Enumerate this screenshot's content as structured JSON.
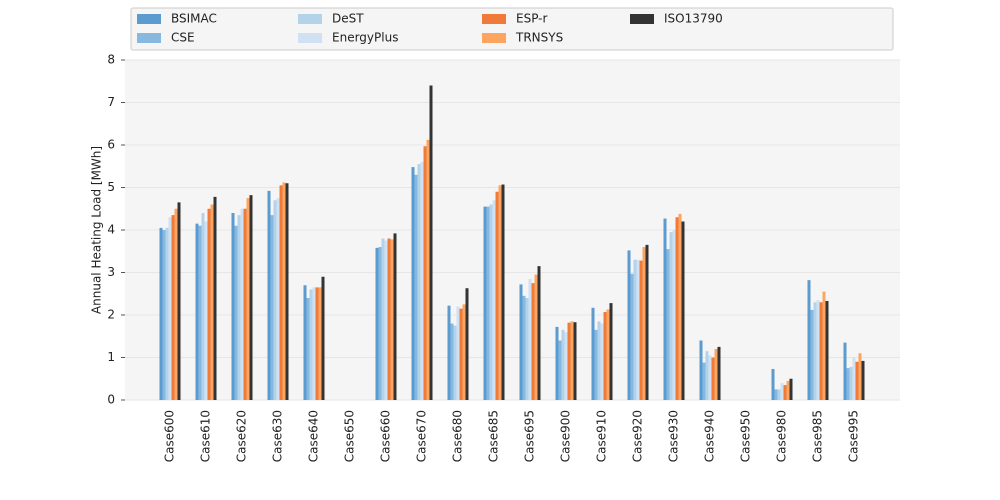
{
  "chart_data": {
    "type": "bar",
    "ylabel": "Annual Heating Load [MWh]",
    "categories": [
      "Case600",
      "Case610",
      "Case620",
      "Case630",
      "Case640",
      "Case650",
      "Case660",
      "Case670",
      "Case680",
      "Case685",
      "Case695",
      "Case900",
      "Case910",
      "Case920",
      "Case930",
      "Case940",
      "Case950",
      "Case980",
      "Case985",
      "Case995"
    ],
    "series": [
      {
        "name": "BSIMAC",
        "color": "#5b9bd0",
        "values": [
          4.05,
          4.15,
          4.4,
          4.92,
          2.7,
          0,
          3.58,
          5.48,
          2.22,
          4.55,
          2.72,
          1.72,
          2.17,
          3.52,
          4.27,
          1.4,
          0,
          0.73,
          2.82,
          1.35
        ]
      },
      {
        "name": "CSE",
        "color": "#86b8e0",
        "values": [
          4.0,
          4.1,
          4.1,
          4.35,
          2.4,
          0,
          3.6,
          5.3,
          1.8,
          4.55,
          2.45,
          1.4,
          1.65,
          2.97,
          3.55,
          0.88,
          0,
          0.25,
          2.12,
          0.75
        ]
      },
      {
        "name": "DeST",
        "color": "#b3d3ea",
        "values": [
          4.05,
          4.4,
          4.35,
          4.7,
          2.6,
          0,
          3.8,
          5.55,
          1.75,
          4.6,
          2.4,
          1.65,
          1.85,
          3.3,
          3.95,
          1.15,
          0,
          0.25,
          2.3,
          0.78
        ]
      },
      {
        "name": "EnergyPlus",
        "color": "#cfe1f2",
        "values": [
          4.3,
          4.2,
          4.5,
          4.75,
          2.65,
          0,
          3.75,
          5.6,
          2.2,
          4.7,
          2.85,
          1.6,
          1.8,
          3.3,
          4.0,
          1.05,
          0,
          0.4,
          2.35,
          1.0
        ]
      },
      {
        "name": "ESP-r",
        "color": "#ef7a3a",
        "values": [
          4.35,
          4.5,
          4.5,
          5.05,
          2.65,
          0,
          3.8,
          5.97,
          2.15,
          4.9,
          2.75,
          1.82,
          2.07,
          3.28,
          4.3,
          1.0,
          0,
          0.35,
          2.3,
          0.9
        ]
      },
      {
        "name": "TRNSYS",
        "color": "#fda560",
        "values": [
          4.5,
          4.6,
          4.75,
          5.12,
          2.65,
          0,
          3.78,
          6.12,
          2.25,
          5.05,
          2.95,
          1.85,
          2.13,
          3.6,
          4.38,
          1.2,
          0,
          0.45,
          2.55,
          1.1
        ]
      },
      {
        "name": "ISO13790",
        "color": "#333333",
        "values": [
          4.65,
          4.78,
          4.82,
          5.1,
          2.9,
          0,
          3.92,
          7.4,
          2.63,
          5.07,
          3.15,
          1.83,
          2.28,
          3.65,
          4.2,
          1.25,
          0,
          0.5,
          2.33,
          0.92
        ]
      }
    ],
    "ylim": [
      0,
      8
    ],
    "yticks": [
      0,
      1,
      2,
      3,
      4,
      5,
      6,
      7,
      8
    ],
    "grid": true,
    "legend": "top"
  }
}
